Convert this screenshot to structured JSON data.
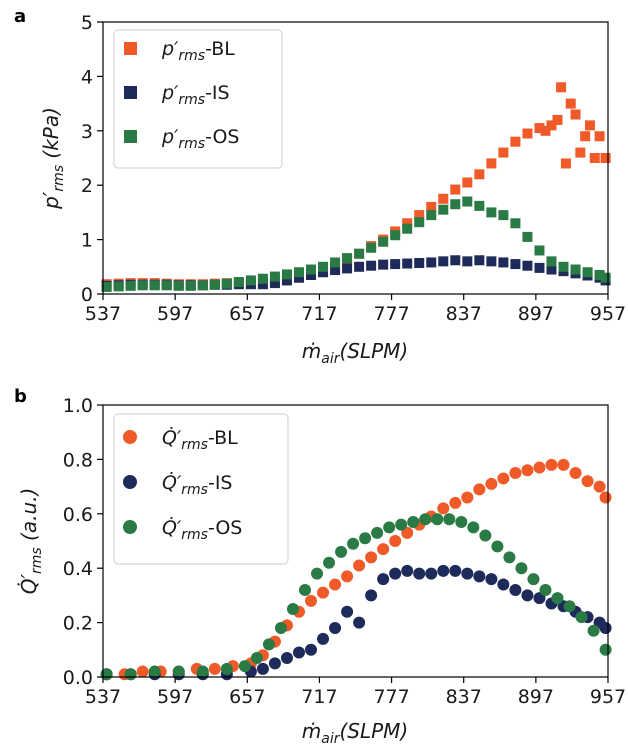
{
  "panels": [
    {
      "letter": "a",
      "ylabel_main": "p′",
      "ylabel_sub": "rms",
      "ylabel_unit": " (kPa)",
      "xlabel_main": "ṁ",
      "xlabel_sub": "air",
      "xlabel_unit": "(SLPM)",
      "legend": [
        {
          "prefix": "p′",
          "sub": "rms",
          "suffix": "-BL"
        },
        {
          "prefix": "p′",
          "sub": "rms",
          "suffix": "-IS"
        },
        {
          "prefix": "p′",
          "sub": "rms",
          "suffix": "-OS"
        }
      ],
      "yticks": [
        "0",
        "1",
        "2",
        "3",
        "4",
        "5"
      ],
      "xticks": [
        "537",
        "597",
        "657",
        "717",
        "777",
        "837",
        "897",
        "957"
      ]
    },
    {
      "letter": "b",
      "ylabel_main": "Q̇′",
      "ylabel_sub": "rms",
      "ylabel_unit": " (a.u.)",
      "xlabel_main": "ṁ",
      "xlabel_sub": "air",
      "xlabel_unit": "(SLPM)",
      "legend": [
        {
          "prefix": "Q̇′",
          "sub": "rms",
          "suffix": "-BL"
        },
        {
          "prefix": "Q̇′",
          "sub": "rms",
          "suffix": "-IS"
        },
        {
          "prefix": "Q̇′",
          "sub": "rms",
          "suffix": "-OS"
        }
      ],
      "yticks": [
        "0.0",
        "0.2",
        "0.4",
        "0.6",
        "0.8",
        "1.0"
      ],
      "xticks": [
        "537",
        "597",
        "657",
        "717",
        "777",
        "837",
        "897",
        "957"
      ]
    }
  ],
  "colors": {
    "BL": "#f05a28",
    "IS": "#1e2a5a",
    "OS": "#2a7a45"
  },
  "chart_data": [
    {
      "type": "scatter",
      "marker": "square",
      "x_range": [
        537,
        957
      ],
      "ylim": [
        0,
        5
      ],
      "xticks": [
        537,
        597,
        657,
        717,
        777,
        837,
        897,
        957
      ],
      "yticks": [
        0,
        1,
        2,
        3,
        4,
        5
      ],
      "legend_position": "top-left",
      "series": [
        {
          "key": "BL",
          "points": [
            [
              540,
              0.18
            ],
            [
              550,
              0.19
            ],
            [
              560,
              0.2
            ],
            [
              570,
              0.2
            ],
            [
              580,
              0.2
            ],
            [
              590,
              0.19
            ],
            [
              600,
              0.18
            ],
            [
              610,
              0.18
            ],
            [
              620,
              0.18
            ],
            [
              630,
              0.19
            ],
            [
              640,
              0.2
            ],
            [
              650,
              0.2
            ],
            [
              660,
              0.2
            ],
            [
              670,
              0.2
            ],
            [
              680,
              0.22
            ],
            [
              690,
              0.25
            ],
            [
              700,
              0.3
            ],
            [
              710,
              0.35
            ],
            [
              720,
              0.42
            ],
            [
              730,
              0.52
            ],
            [
              740,
              0.62
            ],
            [
              750,
              0.74
            ],
            [
              760,
              0.88
            ],
            [
              770,
              1.0
            ],
            [
              780,
              1.15
            ],
            [
              790,
              1.3
            ],
            [
              800,
              1.45
            ],
            [
              810,
              1.6
            ],
            [
              820,
              1.75
            ],
            [
              830,
              1.92
            ],
            [
              840,
              2.05
            ],
            [
              850,
              2.2
            ],
            [
              860,
              2.4
            ],
            [
              870,
              2.6
            ],
            [
              880,
              2.8
            ],
            [
              890,
              2.95
            ],
            [
              900,
              3.05
            ],
            [
              905,
              3.0
            ],
            [
              910,
              3.1
            ],
            [
              915,
              3.2
            ],
            [
              918,
              3.8
            ],
            [
              922,
              2.4
            ],
            [
              926,
              3.5
            ],
            [
              930,
              3.3
            ],
            [
              934,
              2.6
            ],
            [
              938,
              2.9
            ],
            [
              942,
              3.1
            ],
            [
              946,
              2.5
            ],
            [
              950,
              2.9
            ],
            [
              955,
              2.5
            ]
          ]
        },
        {
          "key": "IS",
          "points": [
            [
              540,
              0.15
            ],
            [
              550,
              0.16
            ],
            [
              560,
              0.17
            ],
            [
              570,
              0.17
            ],
            [
              580,
              0.17
            ],
            [
              590,
              0.17
            ],
            [
              600,
              0.16
            ],
            [
              610,
              0.16
            ],
            [
              620,
              0.16
            ],
            [
              630,
              0.17
            ],
            [
              640,
              0.17
            ],
            [
              650,
              0.18
            ],
            [
              660,
              0.18
            ],
            [
              670,
              0.18
            ],
            [
              680,
              0.2
            ],
            [
              690,
              0.25
            ],
            [
              700,
              0.3
            ],
            [
              710,
              0.35
            ],
            [
              720,
              0.4
            ],
            [
              730,
              0.44
            ],
            [
              740,
              0.47
            ],
            [
              750,
              0.5
            ],
            [
              760,
              0.52
            ],
            [
              770,
              0.54
            ],
            [
              780,
              0.55
            ],
            [
              790,
              0.56
            ],
            [
              800,
              0.57
            ],
            [
              810,
              0.58
            ],
            [
              820,
              0.6
            ],
            [
              830,
              0.62
            ],
            [
              840,
              0.6
            ],
            [
              850,
              0.62
            ],
            [
              860,
              0.6
            ],
            [
              870,
              0.58
            ],
            [
              880,
              0.55
            ],
            [
              890,
              0.52
            ],
            [
              900,
              0.48
            ],
            [
              910,
              0.45
            ],
            [
              920,
              0.42
            ],
            [
              930,
              0.38
            ],
            [
              940,
              0.34
            ],
            [
              950,
              0.3
            ],
            [
              955,
              0.25
            ]
          ]
        },
        {
          "key": "OS",
          "points": [
            [
              540,
              0.13
            ],
            [
              550,
              0.14
            ],
            [
              560,
              0.15
            ],
            [
              570,
              0.16
            ],
            [
              580,
              0.16
            ],
            [
              590,
              0.16
            ],
            [
              600,
              0.15
            ],
            [
              610,
              0.15
            ],
            [
              620,
              0.16
            ],
            [
              630,
              0.17
            ],
            [
              640,
              0.19
            ],
            [
              650,
              0.22
            ],
            [
              660,
              0.25
            ],
            [
              670,
              0.28
            ],
            [
              680,
              0.32
            ],
            [
              690,
              0.36
            ],
            [
              700,
              0.4
            ],
            [
              710,
              0.45
            ],
            [
              720,
              0.5
            ],
            [
              730,
              0.58
            ],
            [
              740,
              0.66
            ],
            [
              750,
              0.74
            ],
            [
              760,
              0.85
            ],
            [
              770,
              0.96
            ],
            [
              780,
              1.08
            ],
            [
              790,
              1.2
            ],
            [
              800,
              1.32
            ],
            [
              810,
              1.45
            ],
            [
              820,
              1.55
            ],
            [
              830,
              1.65
            ],
            [
              840,
              1.7
            ],
            [
              850,
              1.62
            ],
            [
              860,
              1.5
            ],
            [
              870,
              1.45
            ],
            [
              880,
              1.3
            ],
            [
              890,
              1.05
            ],
            [
              900,
              0.8
            ],
            [
              910,
              0.6
            ],
            [
              920,
              0.5
            ],
            [
              930,
              0.45
            ],
            [
              940,
              0.4
            ],
            [
              950,
              0.35
            ],
            [
              955,
              0.3
            ]
          ]
        }
      ]
    },
    {
      "type": "scatter",
      "marker": "circle",
      "x_range": [
        537,
        957
      ],
      "ylim": [
        0,
        1.0
      ],
      "xticks": [
        537,
        597,
        657,
        717,
        777,
        837,
        897,
        957
      ],
      "yticks": [
        0.0,
        0.2,
        0.4,
        0.6,
        0.8,
        1.0
      ],
      "legend_position": "top-left",
      "series": [
        {
          "key": "BL",
          "points": [
            [
              540,
              0.01
            ],
            [
              555,
              0.01
            ],
            [
              570,
              0.02
            ],
            [
              585,
              0.02
            ],
            [
              600,
              0.02
            ],
            [
              615,
              0.03
            ],
            [
              630,
              0.03
            ],
            [
              645,
              0.04
            ],
            [
              660,
              0.05
            ],
            [
              670,
              0.08
            ],
            [
              680,
              0.13
            ],
            [
              690,
              0.19
            ],
            [
              700,
              0.24
            ],
            [
              710,
              0.28
            ],
            [
              720,
              0.31
            ],
            [
              730,
              0.34
            ],
            [
              740,
              0.37
            ],
            [
              750,
              0.41
            ],
            [
              760,
              0.44
            ],
            [
              770,
              0.47
            ],
            [
              780,
              0.5
            ],
            [
              790,
              0.53
            ],
            [
              800,
              0.56
            ],
            [
              810,
              0.59
            ],
            [
              820,
              0.62
            ],
            [
              830,
              0.64
            ],
            [
              840,
              0.66
            ],
            [
              850,
              0.69
            ],
            [
              860,
              0.71
            ],
            [
              870,
              0.73
            ],
            [
              880,
              0.75
            ],
            [
              890,
              0.76
            ],
            [
              900,
              0.77
            ],
            [
              910,
              0.78
            ],
            [
              920,
              0.78
            ],
            [
              930,
              0.75
            ],
            [
              940,
              0.72
            ],
            [
              950,
              0.7
            ],
            [
              955,
              0.66
            ]
          ]
        },
        {
          "key": "IS",
          "points": [
            [
              540,
              0.01
            ],
            [
              560,
              0.01
            ],
            [
              580,
              0.01
            ],
            [
              600,
              0.01
            ],
            [
              620,
              0.01
            ],
            [
              640,
              0.01
            ],
            [
              660,
              0.02
            ],
            [
              670,
              0.03
            ],
            [
              680,
              0.05
            ],
            [
              690,
              0.07
            ],
            [
              700,
              0.09
            ],
            [
              710,
              0.1
            ],
            [
              720,
              0.14
            ],
            [
              730,
              0.18
            ],
            [
              740,
              0.24
            ],
            [
              750,
              0.2
            ],
            [
              760,
              0.3
            ],
            [
              770,
              0.36
            ],
            [
              780,
              0.38
            ],
            [
              790,
              0.39
            ],
            [
              800,
              0.38
            ],
            [
              810,
              0.38
            ],
            [
              820,
              0.39
            ],
            [
              830,
              0.39
            ],
            [
              840,
              0.38
            ],
            [
              850,
              0.37
            ],
            [
              860,
              0.36
            ],
            [
              870,
              0.34
            ],
            [
              880,
              0.32
            ],
            [
              890,
              0.3
            ],
            [
              900,
              0.29
            ],
            [
              910,
              0.27
            ],
            [
              920,
              0.26
            ],
            [
              930,
              0.24
            ],
            [
              940,
              0.22
            ],
            [
              950,
              0.2
            ],
            [
              955,
              0.18
            ]
          ]
        },
        {
          "key": "OS",
          "points": [
            [
              540,
              0.01
            ],
            [
              560,
              0.01
            ],
            [
              580,
              0.02
            ],
            [
              600,
              0.02
            ],
            [
              620,
              0.02
            ],
            [
              640,
              0.03
            ],
            [
              655,
              0.04
            ],
            [
              665,
              0.07
            ],
            [
              675,
              0.12
            ],
            [
              685,
              0.18
            ],
            [
              695,
              0.25
            ],
            [
              705,
              0.32
            ],
            [
              715,
              0.38
            ],
            [
              725,
              0.42
            ],
            [
              735,
              0.46
            ],
            [
              745,
              0.49
            ],
            [
              755,
              0.51
            ],
            [
              765,
              0.53
            ],
            [
              775,
              0.55
            ],
            [
              785,
              0.56
            ],
            [
              795,
              0.57
            ],
            [
              805,
              0.58
            ],
            [
              815,
              0.58
            ],
            [
              825,
              0.58
            ],
            [
              835,
              0.57
            ],
            [
              845,
              0.55
            ],
            [
              855,
              0.52
            ],
            [
              865,
              0.48
            ],
            [
              875,
              0.44
            ],
            [
              885,
              0.4
            ],
            [
              895,
              0.36
            ],
            [
              905,
              0.32
            ],
            [
              915,
              0.29
            ],
            [
              925,
              0.26
            ],
            [
              935,
              0.22
            ],
            [
              945,
              0.17
            ],
            [
              955,
              0.1
            ]
          ]
        }
      ]
    }
  ]
}
